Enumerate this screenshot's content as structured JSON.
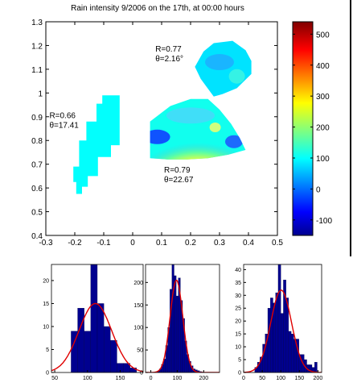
{
  "chart_data": [
    {
      "type": "heatmap",
      "title": "Rain intensity 9/2006 on the 17th, at 00:00 hours",
      "xlim": [
        -0.3,
        0.5
      ],
      "ylim": [
        0.4,
        1.3
      ],
      "x_ticks": [
        -0.3,
        -0.2,
        -0.1,
        0,
        0.1,
        0.2,
        0.3,
        0.4,
        0.5
      ],
      "x_tick_labels": [
        "-0.3",
        "-0.2",
        "-0.1",
        "0",
        "0.1",
        "0.2",
        "0.3",
        "0.4",
        "0.5"
      ],
      "y_ticks": [
        0.4,
        0.5,
        0.6,
        0.7,
        0.8,
        0.9,
        1.0,
        1.1,
        1.2,
        1.3
      ],
      "y_tick_labels": [
        "0.4",
        "0.5",
        "0.6",
        "0.7",
        "0.8",
        "0.9",
        "1",
        "1.1",
        "1.2",
        "1.3"
      ],
      "colorbar": {
        "range": [
          -150,
          540
        ],
        "ticks": [
          -100,
          0,
          100,
          200,
          300,
          400,
          500
        ],
        "tick_labels": [
          "-100",
          "0",
          "100",
          "200",
          "300",
          "400",
          "500"
        ],
        "colormap": "jet"
      },
      "regions": [
        {
          "label_r": "R=0.66",
          "label_theta": "θ=17.41",
          "label_anchor": [
            -0.296,
            0.895
          ],
          "dominant_value": 110,
          "outline": [
            [
              -0.105,
              0.99
            ],
            [
              -0.045,
              0.99
            ],
            [
              -0.045,
              0.78
            ],
            [
              -0.075,
              0.78
            ],
            [
              -0.075,
              0.73
            ],
            [
              -0.12,
              0.73
            ],
            [
              -0.12,
              0.65
            ],
            [
              -0.155,
              0.65
            ],
            [
              -0.155,
              0.605
            ],
            [
              -0.175,
              0.605
            ],
            [
              -0.175,
              0.575
            ],
            [
              -0.195,
              0.575
            ],
            [
              -0.195,
              0.625
            ],
            [
              -0.205,
              0.625
            ],
            [
              -0.205,
              0.69
            ],
            [
              -0.185,
              0.69
            ],
            [
              -0.185,
              0.8
            ],
            [
              -0.16,
              0.8
            ],
            [
              -0.16,
              0.88
            ],
            [
              -0.125,
              0.88
            ],
            [
              -0.125,
              0.955
            ],
            [
              -0.105,
              0.955
            ]
          ]
        },
        {
          "label_r": "R=0.77",
          "label_theta": "θ=2.16°",
          "label_anchor": [
            0.07,
            1.175
          ],
          "dominant_value": 90,
          "outline": [
            [
              0.28,
              1.21
            ],
            [
              0.345,
              1.22
            ],
            [
              0.39,
              1.18
            ],
            [
              0.41,
              1.135
            ],
            [
              0.41,
              1.08
            ],
            [
              0.36,
              1.02
            ],
            [
              0.31,
              0.995
            ],
            [
              0.28,
              0.985
            ],
            [
              0.235,
              1.06
            ],
            [
              0.215,
              1.11
            ],
            [
              0.245,
              1.175
            ]
          ]
        },
        {
          "label_r": "R=0.79",
          "label_theta": "θ=22.67",
          "label_anchor": [
            0.1,
            0.665
          ],
          "dominant_value": 120,
          "outline": [
            [
              0.06,
              0.88
            ],
            [
              0.13,
              0.945
            ],
            [
              0.2,
              0.975
            ],
            [
              0.26,
              0.975
            ],
            [
              0.3,
              0.93
            ],
            [
              0.34,
              0.87
            ],
            [
              0.37,
              0.81
            ],
            [
              0.39,
              0.76
            ],
            [
              0.33,
              0.74
            ],
            [
              0.26,
              0.725
            ],
            [
              0.19,
              0.72
            ],
            [
              0.12,
              0.72
            ],
            [
              0.06,
              0.725
            ]
          ]
        }
      ]
    },
    {
      "type": "bar",
      "subtype": "histogram",
      "x_ticks": [
        50,
        100,
        150
      ],
      "x_tick_labels": [
        "50",
        "100",
        "150"
      ],
      "xlim": [
        45,
        185
      ],
      "y_ticks": [
        0,
        5,
        10,
        15,
        20
      ],
      "y_tick_labels": [
        "0",
        "5",
        "10",
        "15",
        "20"
      ],
      "ylim": [
        0,
        23.5
      ],
      "bin_width": 10,
      "bin_starts": [
        75,
        85,
        95,
        105,
        115,
        125,
        135,
        145,
        155,
        165
      ],
      "values": [
        9,
        14,
        9,
        24,
        15,
        10,
        7,
        2,
        2,
        1
      ],
      "fit": {
        "mean": 112,
        "std": 25,
        "peak": 15
      }
    },
    {
      "type": "bar",
      "subtype": "histogram",
      "x_ticks": [
        0,
        100,
        200
      ],
      "x_tick_labels": [
        "0",
        "100",
        "200"
      ],
      "xlim": [
        -20,
        260
      ],
      "y_ticks": [
        0,
        50,
        100,
        150,
        200
      ],
      "y_tick_labels": [
        "0",
        "50",
        "100",
        "150",
        "200"
      ],
      "ylim": [
        0,
        240
      ],
      "bin_width": 8,
      "bin_starts": [
        24,
        32,
        40,
        48,
        56,
        64,
        72,
        80,
        88,
        96,
        104,
        112,
        120,
        128,
        136,
        144,
        152,
        160,
        168,
        176,
        184,
        192
      ],
      "values": [
        3,
        8,
        18,
        30,
        60,
        100,
        185,
        240,
        215,
        170,
        210,
        160,
        120,
        70,
        40,
        25,
        15,
        8,
        6,
        4,
        2,
        1
      ],
      "fit": {
        "mean": 97,
        "std": 24,
        "peak": 205
      }
    },
    {
      "type": "bar",
      "subtype": "histogram",
      "x_ticks": [
        0,
        50,
        100,
        150,
        200
      ],
      "x_tick_labels": [
        "0",
        "50",
        "100",
        "150",
        "200"
      ],
      "xlim": [
        0,
        210
      ],
      "y_ticks": [
        0,
        5,
        10,
        15,
        20,
        25,
        30,
        35,
        40
      ],
      "y_tick_labels": [
        "0",
        "5",
        "10",
        "15",
        "20",
        "25",
        "30",
        "35",
        "40"
      ],
      "ylim": [
        0,
        42
      ],
      "bin_width": 7,
      "bin_starts": [
        30,
        37,
        44,
        51,
        58,
        65,
        72,
        79,
        86,
        93,
        100,
        107,
        114,
        121,
        128,
        135,
        142,
        149,
        156,
        163,
        170,
        177,
        184,
        191
      ],
      "values": [
        2,
        4,
        6,
        11,
        15,
        25,
        29,
        27,
        31,
        43,
        23,
        36,
        29,
        16,
        15,
        13,
        13,
        7,
        7,
        5,
        3,
        3,
        2,
        4
      ],
      "fit": {
        "mean": 101,
        "std": 28,
        "peak": 32
      }
    }
  ]
}
